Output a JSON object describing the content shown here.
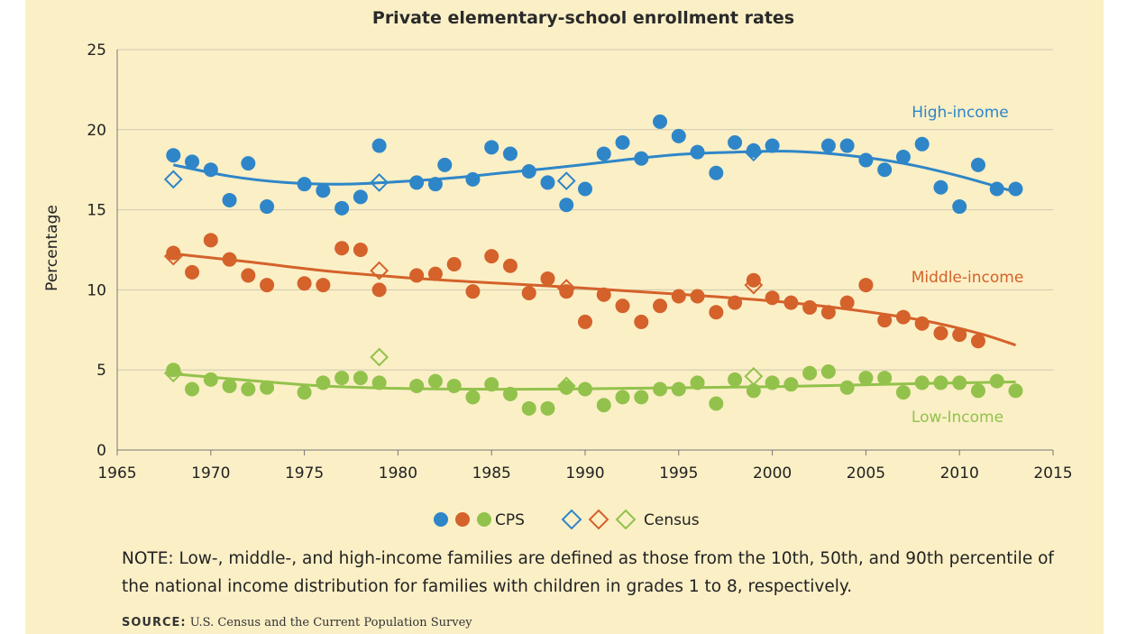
{
  "colors": {
    "background": "#fbefc6",
    "high": "#2e86c8",
    "middle": "#d4622a",
    "low": "#92c24b",
    "grid": "#cfc8b0"
  },
  "chart_data": {
    "type": "scatter",
    "title": "Private elementary-school enrollment rates",
    "xlabel": "",
    "ylabel": "Percentage",
    "xlim": [
      1965,
      2015
    ],
    "ylim": [
      0,
      25
    ],
    "xticks": [
      1965,
      1970,
      1975,
      1980,
      1985,
      1990,
      1995,
      2000,
      2005,
      2010,
      2015
    ],
    "yticks": [
      0,
      5,
      10,
      15,
      20,
      25
    ],
    "grid": "horizontal",
    "legend_position": "bottom",
    "legend": {
      "cps_label": "CPS",
      "census_label": "Census"
    },
    "series": [
      {
        "name": "High-income",
        "key": "high",
        "cps": [
          [
            1968,
            18.4
          ],
          [
            1969,
            18.0
          ],
          [
            1970,
            17.5
          ],
          [
            1971,
            15.6
          ],
          [
            1972,
            17.9
          ],
          [
            1973,
            15.2
          ],
          [
            1975,
            16.6
          ],
          [
            1976,
            16.2
          ],
          [
            1977,
            15.1
          ],
          [
            1978,
            15.8
          ],
          [
            1979,
            19.0
          ],
          [
            1981,
            16.7
          ],
          [
            1982,
            16.6
          ],
          [
            1982.5,
            17.8
          ],
          [
            1984,
            16.9
          ],
          [
            1985,
            18.9
          ],
          [
            1986,
            18.5
          ],
          [
            1987,
            17.4
          ],
          [
            1988,
            16.7
          ],
          [
            1989,
            15.3
          ],
          [
            1990,
            16.3
          ],
          [
            1991,
            18.5
          ],
          [
            1992,
            19.2
          ],
          [
            1993,
            18.2
          ],
          [
            1994,
            20.5
          ],
          [
            1995,
            19.6
          ],
          [
            1996,
            18.6
          ],
          [
            1997,
            17.3
          ],
          [
            1998,
            19.2
          ],
          [
            1999,
            18.7
          ],
          [
            2000,
            19.0
          ],
          [
            2003,
            19.0
          ],
          [
            2004,
            19.0
          ],
          [
            2005,
            18.1
          ],
          [
            2006,
            17.5
          ],
          [
            2007,
            18.3
          ],
          [
            2008,
            19.1
          ],
          [
            2009,
            16.4
          ],
          [
            2010,
            15.2
          ],
          [
            2011,
            17.8
          ],
          [
            2012,
            16.3
          ],
          [
            2013,
            16.3
          ]
        ],
        "census": [
          [
            1968,
            16.9
          ],
          [
            1979,
            16.7
          ],
          [
            1989,
            16.8
          ],
          [
            1999,
            18.6
          ]
        ],
        "trend": [
          [
            1968,
            17.8
          ],
          [
            1971,
            17.1
          ],
          [
            1974,
            16.7
          ],
          [
            1977,
            16.6
          ],
          [
            1980,
            16.75
          ],
          [
            1983,
            17.0
          ],
          [
            1986,
            17.35
          ],
          [
            1989,
            17.7
          ],
          [
            1992,
            18.1
          ],
          [
            1995,
            18.45
          ],
          [
            1998,
            18.6
          ],
          [
            2001,
            18.65
          ],
          [
            2004,
            18.4
          ],
          [
            2007,
            17.9
          ],
          [
            2010,
            17.1
          ],
          [
            2013,
            16.1
          ]
        ]
      },
      {
        "name": "Middle-income",
        "key": "middle",
        "cps": [
          [
            1968,
            12.3
          ],
          [
            1969,
            11.1
          ],
          [
            1970,
            13.1
          ],
          [
            1971,
            11.9
          ],
          [
            1972,
            10.9
          ],
          [
            1973,
            10.3
          ],
          [
            1975,
            10.4
          ],
          [
            1976,
            10.3
          ],
          [
            1977,
            12.6
          ],
          [
            1978,
            12.5
          ],
          [
            1979,
            10.0
          ],
          [
            1981,
            10.9
          ],
          [
            1982,
            11.0
          ],
          [
            1983,
            11.6
          ],
          [
            1984,
            9.9
          ],
          [
            1985,
            12.1
          ],
          [
            1986,
            11.5
          ],
          [
            1987,
            9.8
          ],
          [
            1988,
            10.7
          ],
          [
            1989,
            9.9
          ],
          [
            1990,
            8.0
          ],
          [
            1991,
            9.7
          ],
          [
            1992,
            9.0
          ],
          [
            1993,
            8.0
          ],
          [
            1994,
            9.0
          ],
          [
            1995,
            9.6
          ],
          [
            1996,
            9.6
          ],
          [
            1997,
            8.6
          ],
          [
            1998,
            9.2
          ],
          [
            1999,
            10.6
          ],
          [
            2000,
            9.5
          ],
          [
            2001,
            9.2
          ],
          [
            2002,
            8.9
          ],
          [
            2003,
            8.6
          ],
          [
            2004,
            9.2
          ],
          [
            2005,
            10.3
          ],
          [
            2006,
            8.1
          ],
          [
            2007,
            8.3
          ],
          [
            2008,
            7.9
          ],
          [
            2009,
            7.3
          ],
          [
            2010,
            7.2
          ],
          [
            2011,
            6.8
          ]
        ],
        "census": [
          [
            1968,
            12.1
          ],
          [
            1979,
            11.2
          ],
          [
            1989,
            10.1
          ],
          [
            1999,
            10.3
          ]
        ],
        "trend": [
          [
            1968,
            12.25
          ],
          [
            1972,
            11.75
          ],
          [
            1976,
            11.2
          ],
          [
            1980,
            10.8
          ],
          [
            1984,
            10.5
          ],
          [
            1988,
            10.25
          ],
          [
            1992,
            9.95
          ],
          [
            1996,
            9.65
          ],
          [
            2000,
            9.3
          ],
          [
            2004,
            8.8
          ],
          [
            2008,
            8.1
          ],
          [
            2011,
            7.3
          ],
          [
            2013,
            6.55
          ]
        ]
      },
      {
        "name": "Low-Income",
        "key": "low",
        "cps": [
          [
            1968,
            5.0
          ],
          [
            1969,
            3.8
          ],
          [
            1970,
            4.4
          ],
          [
            1971,
            4.0
          ],
          [
            1972,
            3.8
          ],
          [
            1973,
            3.9
          ],
          [
            1975,
            3.6
          ],
          [
            1976,
            4.2
          ],
          [
            1977,
            4.5
          ],
          [
            1978,
            4.5
          ],
          [
            1979,
            4.2
          ],
          [
            1981,
            4.0
          ],
          [
            1982,
            4.3
          ],
          [
            1983,
            4.0
          ],
          [
            1984,
            3.3
          ],
          [
            1985,
            4.1
          ],
          [
            1986,
            3.5
          ],
          [
            1987,
            2.6
          ],
          [
            1988,
            2.6
          ],
          [
            1989,
            3.9
          ],
          [
            1990,
            3.8
          ],
          [
            1991,
            2.8
          ],
          [
            1992,
            3.3
          ],
          [
            1993,
            3.3
          ],
          [
            1994,
            3.8
          ],
          [
            1995,
            3.8
          ],
          [
            1996,
            4.2
          ],
          [
            1997,
            2.9
          ],
          [
            1998,
            4.4
          ],
          [
            1999,
            3.7
          ],
          [
            2000,
            4.2
          ],
          [
            2001,
            4.1
          ],
          [
            2002,
            4.8
          ],
          [
            2003,
            4.9
          ],
          [
            2004,
            3.9
          ],
          [
            2005,
            4.5
          ],
          [
            2006,
            4.5
          ],
          [
            2007,
            3.6
          ],
          [
            2008,
            4.2
          ],
          [
            2009,
            4.2
          ],
          [
            2010,
            4.2
          ],
          [
            2011,
            3.7
          ],
          [
            2012,
            4.3
          ],
          [
            2013,
            3.7
          ]
        ],
        "census": [
          [
            1968,
            4.8
          ],
          [
            1979,
            5.8
          ],
          [
            1989,
            4.0
          ],
          [
            1999,
            4.6
          ]
        ],
        "trend": [
          [
            1968,
            4.75
          ],
          [
            1972,
            4.35
          ],
          [
            1976,
            4.0
          ],
          [
            1980,
            3.85
          ],
          [
            1984,
            3.8
          ],
          [
            1988,
            3.8
          ],
          [
            1992,
            3.85
          ],
          [
            1996,
            3.9
          ],
          [
            2000,
            3.95
          ],
          [
            2004,
            4.05
          ],
          [
            2008,
            4.15
          ],
          [
            2013,
            4.25
          ]
        ]
      }
    ]
  },
  "note": "NOTE: Low-, middle-, and high-income families are defined as those from the 10th, 50th, and 90th percentile of the national income distribution for families with children in grades 1 to 8, respectively.",
  "source": {
    "label": "SOURCE:",
    "text": "U.S. Census and the Current Population Survey"
  }
}
